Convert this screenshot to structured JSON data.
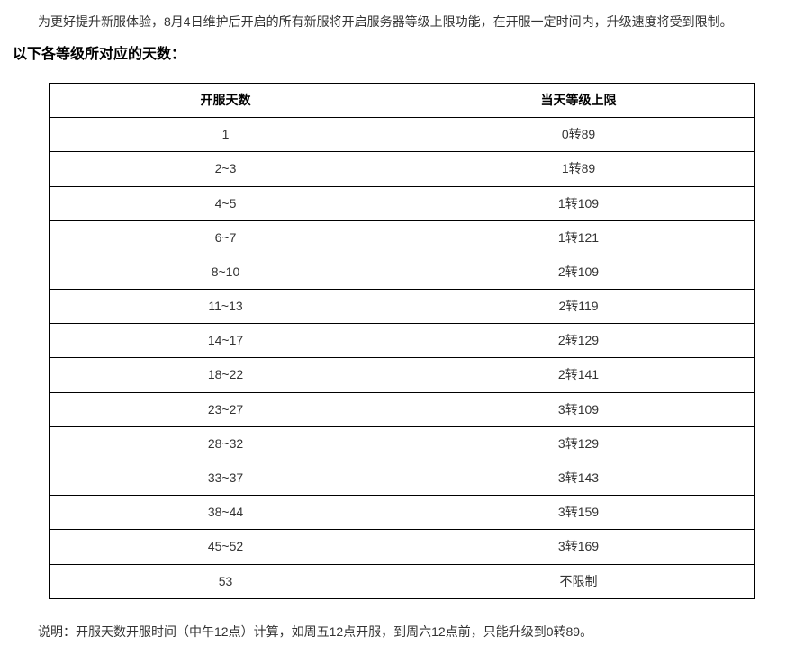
{
  "intro": "为更好提升新服体验，8月4日维护后开启的所有新服将开启服务器等级上限功能，在开服一定时间内，升级速度将受到限制。",
  "heading": "以下各等级所对应的天数：",
  "table": {
    "columns": [
      "开服天数",
      "当天等级上限"
    ],
    "rows": [
      [
        "1",
        "0转89"
      ],
      [
        "2~3",
        "1转89"
      ],
      [
        "4~5",
        "1转109"
      ],
      [
        "6~7",
        "1转121"
      ],
      [
        "8~10",
        "2转109"
      ],
      [
        "11~13",
        "2转119"
      ],
      [
        "14~17",
        "2转129"
      ],
      [
        "18~22",
        "2转141"
      ],
      [
        "23~27",
        "3转109"
      ],
      [
        "28~32",
        "3转129"
      ],
      [
        "33~37",
        "3转143"
      ],
      [
        "38~44",
        "3转159"
      ],
      [
        "45~52",
        "3转169"
      ],
      [
        "53",
        "不限制"
      ]
    ],
    "border_color": "#000000",
    "text_color": "#333333",
    "header_font_weight": "bold",
    "cell_padding": "6px 4px",
    "font_size": 14
  },
  "note": "说明：开服天数开服时间（中午12点）计算，如周五12点开服，到周六12点前，只能升级到0转89。",
  "styles": {
    "background_color": "#ffffff",
    "body_text_color": "#333333",
    "heading_color": "#000000",
    "body_font_size": 14,
    "heading_font_size": 16
  }
}
